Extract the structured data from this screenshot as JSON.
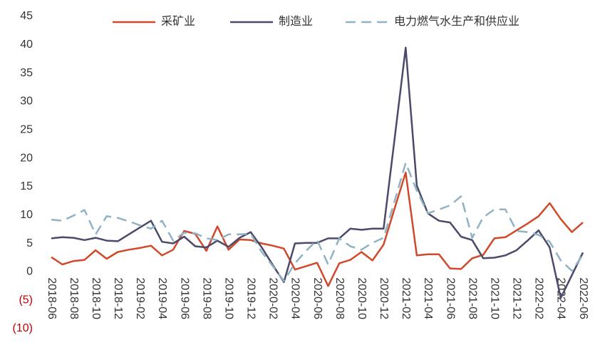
{
  "chart_data": {
    "type": "line",
    "categories": [
      "2018-06",
      null,
      "2018-08",
      null,
      "2018-10",
      null,
      "2018-12",
      null,
      "2019-02",
      null,
      "2019-04",
      null,
      "2019-06",
      null,
      "2019-08",
      null,
      "2019-10",
      null,
      "2019-12",
      null,
      "2020-02",
      null,
      "2020-04",
      null,
      "2020-06",
      null,
      "2020-08",
      null,
      "2020-10",
      null,
      "2020-12",
      null,
      "2021-02",
      null,
      "2021-04",
      null,
      "2021-06",
      null,
      "2021-08",
      null,
      "2021-10",
      null,
      "2021-12",
      null,
      "2022-02",
      null,
      "2022-04",
      null,
      "2022-06"
    ],
    "series": [
      {
        "name": "采矿业",
        "color": "#d0492a",
        "dash": false,
        "values": [
          2.6,
          1.3,
          1.9,
          2.1,
          3.8,
          2.3,
          3.5,
          3.9,
          4.2,
          4.6,
          2.9,
          3.9,
          7.2,
          6.7,
          3.7,
          8.0,
          3.9,
          5.7,
          5.6,
          5.0,
          4.6,
          4.1,
          0.4,
          1.0,
          1.6,
          -2.5,
          1.5,
          2.1,
          3.5,
          2.0,
          4.8,
          11.2,
          17.5,
          2.9,
          3.1,
          3.1,
          0.6,
          0.5,
          2.4,
          3.0,
          5.9,
          6.1,
          7.3,
          8.5,
          9.8,
          12.1,
          9.3,
          7.0,
          8.7
        ]
      },
      {
        "name": "制造业",
        "color": "#4b4a6b",
        "dash": false,
        "values": [
          5.9,
          6.1,
          6.0,
          5.6,
          6.0,
          5.5,
          5.4,
          6.6,
          7.8,
          9.0,
          5.3,
          5.0,
          6.2,
          4.5,
          4.3,
          5.5,
          4.4,
          6.0,
          7.0,
          4.3,
          1.2,
          -1.8,
          5.0,
          5.1,
          5.1,
          5.9,
          5.9,
          7.6,
          7.4,
          7.6,
          7.6,
          23.5,
          39.5,
          15.2,
          10.3,
          9.0,
          8.7,
          6.2,
          5.6,
          2.4,
          2.5,
          2.9,
          3.8,
          5.5,
          7.3,
          4.3,
          -4.6,
          -0.6,
          3.4
        ]
      },
      {
        "name": "电力燃气水生产和供应业",
        "color": "#8fb2c4",
        "dash": true,
        "values": [
          9.2,
          9.0,
          9.9,
          10.9,
          6.6,
          9.8,
          9.5,
          8.9,
          8.2,
          7.6,
          9.0,
          5.5,
          6.9,
          6.8,
          5.9,
          5.6,
          6.6,
          6.6,
          6.7,
          3.5,
          1.0,
          -1.6,
          1.5,
          3.7,
          5.6,
          1.3,
          5.9,
          4.5,
          3.9,
          5.1,
          6.0,
          12.5,
          19.2,
          14.3,
          10.3,
          11.0,
          11.7,
          13.3,
          6.0,
          9.6,
          11.0,
          11.0,
          7.2,
          7.0,
          6.5,
          5.3,
          2.0,
          0.2,
          3.0
        ]
      }
    ],
    "ylim": [
      -10,
      45
    ],
    "yticks": [
      {
        "value": -10,
        "label": "(10)"
      },
      {
        "value": -5,
        "label": "(5)"
      },
      0,
      5,
      10,
      15,
      20,
      25,
      30,
      35,
      40,
      45
    ],
    "negative_tick_color": "#c00000",
    "grid": false,
    "legend": "top"
  }
}
